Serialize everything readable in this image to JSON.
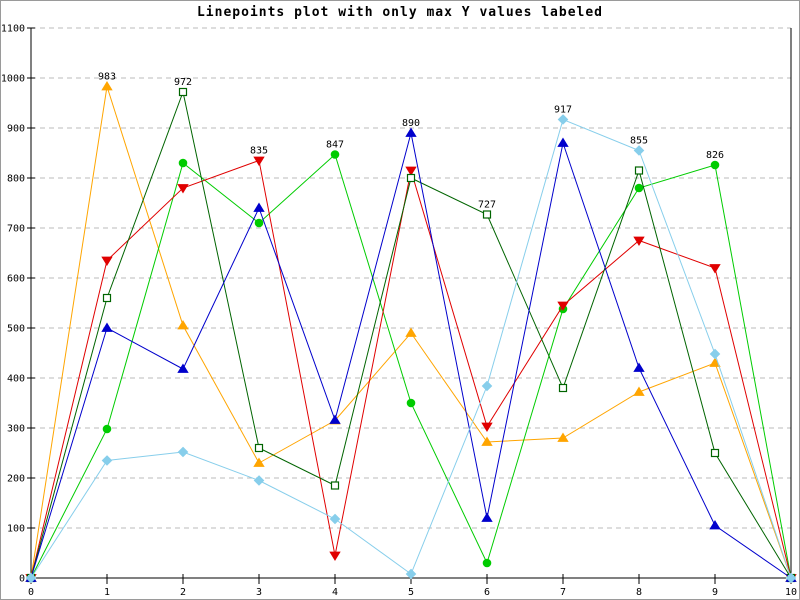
{
  "window": {
    "background": "#ffffff",
    "frame_border_color": "#9a9a9a"
  },
  "chart_data": {
    "type": "line",
    "title": "Linepoints plot with only max Y values labeled",
    "xlabel": "",
    "ylabel": "",
    "xlim": [
      0,
      10
    ],
    "ylim": [
      0,
      1100
    ],
    "x_ticks": [
      0,
      1,
      2,
      3,
      4,
      5,
      6,
      7,
      8,
      9,
      10
    ],
    "y_ticks": [
      0,
      100,
      200,
      300,
      400,
      500,
      600,
      700,
      800,
      900,
      1000,
      1100
    ],
    "grid": {
      "horizontal": true,
      "vertical": false,
      "style": "dashed",
      "color": "#bbbbbb"
    },
    "legend": "none",
    "axis_color": "#000000",
    "tick_label_color": "#000000",
    "point_label_color": "#000000",
    "x": [
      0,
      1,
      2,
      3,
      4,
      5,
      6,
      7,
      8,
      9,
      10
    ],
    "series": [
      {
        "name": "series-orange",
        "color": "#ffa500",
        "marker": "triangle-up",
        "marker_fill": "filled",
        "values": [
          0,
          983,
          505,
          230,
          315,
          490,
          272,
          280,
          372,
          430,
          0
        ]
      },
      {
        "name": "series-green",
        "color": "#00cc00",
        "marker": "circle",
        "marker_fill": "filled",
        "values": [
          0,
          298,
          830,
          710,
          847,
          350,
          30,
          538,
          780,
          826,
          0
        ]
      },
      {
        "name": "series-red",
        "color": "#e00000",
        "marker": "triangle-down",
        "marker_fill": "filled",
        "values": [
          0,
          635,
          780,
          835,
          45,
          815,
          303,
          545,
          675,
          620,
          0
        ]
      },
      {
        "name": "series-dark-green",
        "color": "#006400",
        "marker": "square",
        "marker_fill": "open",
        "values": [
          0,
          560,
          972,
          260,
          185,
          800,
          727,
          380,
          815,
          250,
          0
        ]
      },
      {
        "name": "series-blue",
        "color": "#0000cc",
        "marker": "triangle-up",
        "marker_fill": "filled",
        "values": [
          0,
          500,
          418,
          740,
          316,
          890,
          120,
          870,
          420,
          105,
          0
        ]
      },
      {
        "name": "series-light-blue",
        "color": "#87ceeb",
        "marker": "diamond",
        "marker_fill": "filled",
        "values": [
          0,
          235,
          252,
          195,
          118,
          8,
          384,
          917,
          855,
          448,
          0
        ]
      }
    ],
    "point_labels": [
      {
        "x": 1,
        "y": 983,
        "text": "983"
      },
      {
        "x": 2,
        "y": 972,
        "text": "972"
      },
      {
        "x": 3,
        "y": 835,
        "text": "835"
      },
      {
        "x": 4,
        "y": 847,
        "text": "847"
      },
      {
        "x": 5,
        "y": 890,
        "text": "890"
      },
      {
        "x": 6,
        "y": 727,
        "text": "727"
      },
      {
        "x": 7,
        "y": 917,
        "text": "917"
      },
      {
        "x": 8,
        "y": 855,
        "text": "855"
      },
      {
        "x": 9,
        "y": 826,
        "text": "826"
      }
    ]
  }
}
